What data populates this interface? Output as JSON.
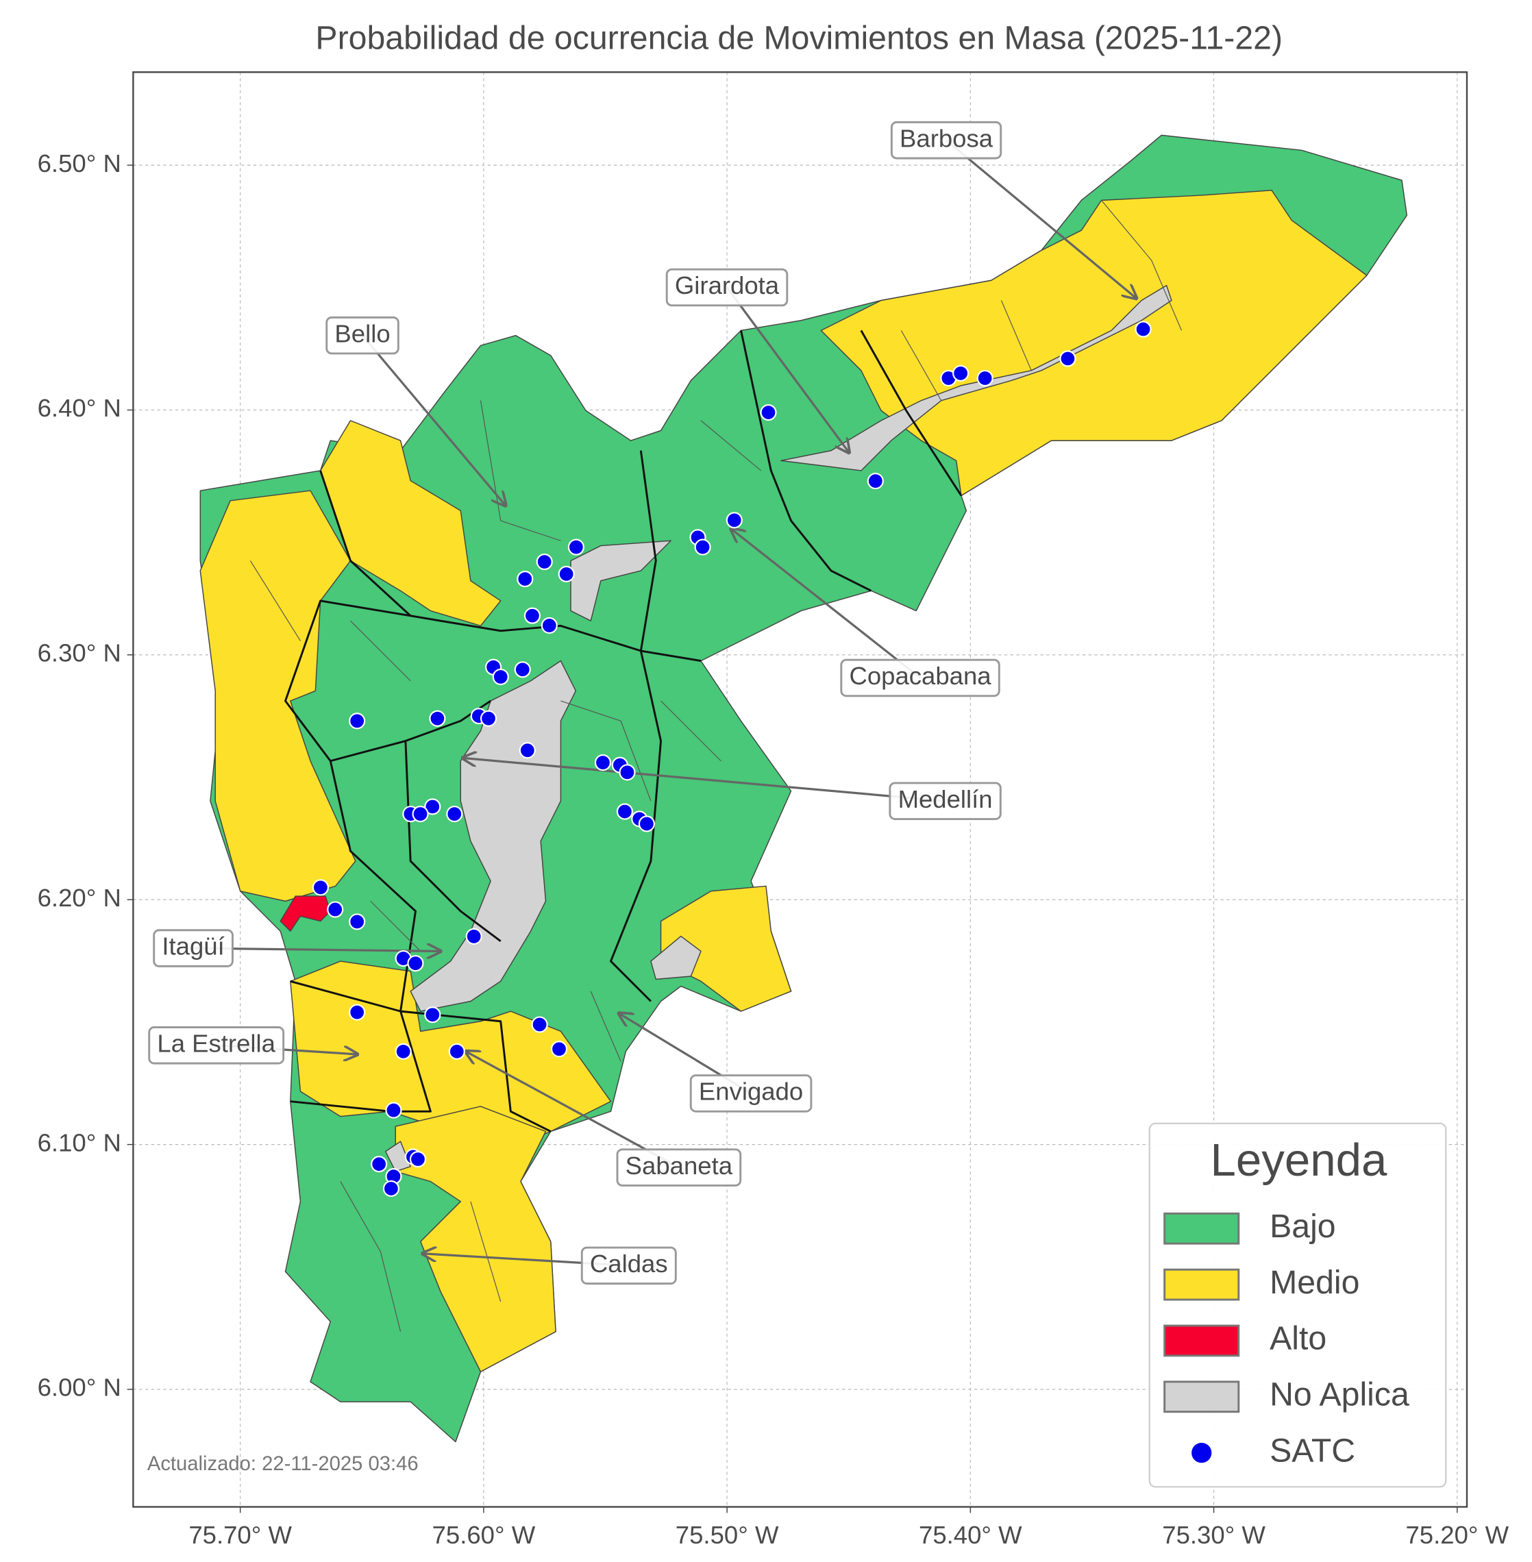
{
  "title": "Probabilidad de ocurrencia de Movimientos en Masa (2025-11-22)",
  "updated": "Actualizado: 22-11-2025 03:46",
  "x_axis": {
    "xlim": [
      -75.744,
      -75.196
    ],
    "ticks": [
      {
        "value": -75.7,
        "label": "75.70° W"
      },
      {
        "value": -75.6,
        "label": "75.60° W"
      },
      {
        "value": -75.5,
        "label": "75.50° W"
      },
      {
        "value": -75.4,
        "label": "75.40° W"
      },
      {
        "value": -75.3,
        "label": "75.30° W"
      },
      {
        "value": -75.2,
        "label": "75.20° W"
      }
    ]
  },
  "y_axis": {
    "ylim": [
      5.952,
      6.538
    ],
    "ticks": [
      {
        "value": 6.0,
        "label": "6.00° N"
      },
      {
        "value": 6.1,
        "label": "6.10° N"
      },
      {
        "value": 6.2,
        "label": "6.20° N"
      },
      {
        "value": 6.3,
        "label": "6.30° N"
      },
      {
        "value": 6.4,
        "label": "6.40° N"
      },
      {
        "value": 6.5,
        "label": "6.50° N"
      }
    ]
  },
  "grid": true,
  "annotations": [
    "Barbosa",
    "Girardota",
    "Bello",
    "Copacabana",
    "Medellín",
    "Itagüí",
    "La Estrella",
    "Envigado",
    "Sabaneta",
    "Caldas"
  ],
  "legend": {
    "title": "Leyenda",
    "corner": "lower right",
    "entries": [
      {
        "label": "Bajo",
        "color": "#48c878"
      },
      {
        "label": "Medio",
        "color": "#fde02a"
      },
      {
        "label": "Alto",
        "color": "#f5002f"
      },
      {
        "label": "No Aplica",
        "color": "#d3d3d3"
      },
      {
        "label": "SATC",
        "color": "#0000ee"
      }
    ]
  },
  "satc": {
    "name": "SATC",
    "color": "#0000ee",
    "lon": [
      -75.483,
      -75.409,
      -75.404,
      -75.394,
      -75.36,
      -75.329,
      -75.439,
      -75.497,
      -75.512,
      -75.51,
      -75.562,
      -75.575,
      -75.583,
      -75.566,
      -75.58,
      -75.573,
      -75.596,
      -75.584,
      -75.593,
      -75.652,
      -75.619,
      -75.602,
      -75.598,
      -75.582,
      -75.551,
      -75.544,
      -75.541,
      -75.542,
      -75.536,
      -75.533,
      -75.621,
      -75.63,
      -75.626,
      -75.612,
      -75.667,
      -75.661,
      -75.652,
      -75.604,
      -75.633,
      -75.628,
      -75.621,
      -75.652,
      -75.633,
      -75.611,
      -75.577,
      -75.569,
      -75.637,
      -75.643,
      -75.629,
      -75.627,
      -75.637,
      -75.638
    ],
    "lat": [
      6.399,
      6.413,
      6.415,
      6.413,
      6.421,
      6.433,
      6.371,
      6.355,
      6.348,
      6.344,
      6.344,
      6.338,
      6.331,
      6.333,
      6.316,
      6.312,
      6.295,
      6.294,
      6.291,
      6.273,
      6.274,
      6.275,
      6.274,
      6.261,
      6.256,
      6.255,
      6.252,
      6.236,
      6.233,
      6.231,
      6.238,
      6.235,
      6.235,
      6.235,
      6.205,
      6.196,
      6.191,
      6.185,
      6.176,
      6.174,
      6.153,
      6.154,
      6.138,
      6.138,
      6.149,
      6.139,
      6.114,
      6.092,
      6.095,
      6.094,
      6.087,
      6.082
    ]
  }
}
